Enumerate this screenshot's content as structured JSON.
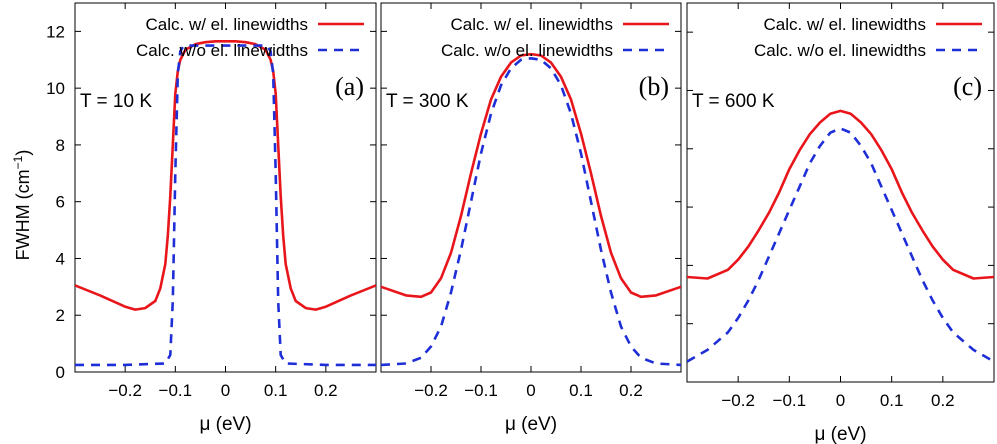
{
  "colors": {
    "with_linewidths": "#e8161b",
    "without_linewidths": "#1f2fd8",
    "axes": "#000000"
  },
  "ylabel": "FWHM (cm",
  "ylabel_sup": "−1",
  "ylabel_close": ")",
  "legend": {
    "with_linewidths": "Calc. w/ el. linewidths",
    "without_linewidths": "Calc. w/o el. linewidths"
  },
  "chart_data": [
    {
      "type": "line",
      "panel_label": "(a)",
      "temperature_label": "T = 10 K",
      "xlabel": "μ (eV)",
      "xlim": [
        -0.3,
        0.3
      ],
      "ylim": [
        0,
        13
      ],
      "xticks": [
        -0.2,
        -0.1,
        0,
        0.1,
        0.2
      ],
      "xtick_labels": [
        "−0.2",
        "−0.1",
        "0",
        "0.1",
        "0.2"
      ],
      "yticks": [
        0,
        2,
        4,
        6,
        8,
        10,
        12
      ],
      "ytick_labels": [
        "0",
        "2",
        "4",
        "6",
        "8",
        "10",
        "12"
      ],
      "legend_position": "top-right",
      "series": [
        {
          "name": "Calc. w/ el. linewidths",
          "style": "solid",
          "x": [
            -0.3,
            -0.25,
            -0.2,
            -0.18,
            -0.16,
            -0.14,
            -0.13,
            -0.12,
            -0.115,
            -0.11,
            -0.105,
            -0.1,
            -0.095,
            -0.09,
            -0.08,
            -0.06,
            -0.04,
            -0.02,
            0,
            0.02,
            0.04,
            0.06,
            0.08,
            0.09,
            0.095,
            0.1,
            0.105,
            0.11,
            0.115,
            0.12,
            0.13,
            0.14,
            0.16,
            0.18,
            0.2,
            0.25,
            0.3
          ],
          "y": [
            3.05,
            2.7,
            2.3,
            2.2,
            2.25,
            2.5,
            2.95,
            3.8,
            4.8,
            6.2,
            8.0,
            9.8,
            10.6,
            11.0,
            11.35,
            11.55,
            11.62,
            11.65,
            11.65,
            11.65,
            11.62,
            11.55,
            11.35,
            11.0,
            10.6,
            9.8,
            8.0,
            6.2,
            4.8,
            3.8,
            2.95,
            2.5,
            2.25,
            2.2,
            2.3,
            2.7,
            3.05
          ]
        },
        {
          "name": "Calc. w/o el. linewidths",
          "style": "dashed",
          "x": [
            -0.3,
            -0.2,
            -0.12,
            -0.11,
            -0.105,
            -0.1,
            -0.095,
            -0.09,
            -0.085,
            -0.08,
            -0.05,
            0,
            0.05,
            0.08,
            0.085,
            0.09,
            0.095,
            0.1,
            0.105,
            0.11,
            0.12,
            0.2,
            0.3
          ],
          "y": [
            0.25,
            0.25,
            0.3,
            0.6,
            2.5,
            7.0,
            10.5,
            11.3,
            11.45,
            11.5,
            11.5,
            11.5,
            11.5,
            11.5,
            11.45,
            11.3,
            10.5,
            7.0,
            2.5,
            0.6,
            0.3,
            0.25,
            0.25
          ]
        }
      ]
    },
    {
      "type": "line",
      "panel_label": "(b)",
      "temperature_label": "T = 300 K",
      "xlabel": "μ (eV)",
      "xlim": [
        -0.3,
        0.3
      ],
      "ylim": [
        0,
        13
      ],
      "xticks": [
        -0.2,
        -0.1,
        0,
        0.1,
        0.2
      ],
      "xtick_labels": [
        "−0.2",
        "−0.1",
        "0",
        "0.1",
        "0.2"
      ],
      "yticks": [
        0,
        2,
        4,
        6,
        8,
        10,
        12
      ],
      "ytick_labels": [],
      "legend_position": "top-right",
      "series": [
        {
          "name": "Calc. w/ el. linewidths",
          "style": "solid",
          "x": [
            -0.3,
            -0.25,
            -0.22,
            -0.2,
            -0.18,
            -0.16,
            -0.14,
            -0.12,
            -0.1,
            -0.08,
            -0.06,
            -0.04,
            -0.02,
            0,
            0.02,
            0.04,
            0.06,
            0.08,
            0.1,
            0.12,
            0.14,
            0.16,
            0.18,
            0.2,
            0.22,
            0.25,
            0.3
          ],
          "y": [
            3.0,
            2.7,
            2.65,
            2.8,
            3.3,
            4.2,
            5.5,
            7.0,
            8.4,
            9.6,
            10.4,
            10.9,
            11.15,
            11.2,
            11.15,
            10.9,
            10.4,
            9.6,
            8.4,
            7.0,
            5.5,
            4.2,
            3.3,
            2.8,
            2.65,
            2.7,
            3.0
          ]
        },
        {
          "name": "Calc. w/o el. linewidths",
          "style": "dashed",
          "x": [
            -0.3,
            -0.25,
            -0.22,
            -0.2,
            -0.18,
            -0.16,
            -0.14,
            -0.12,
            -0.1,
            -0.08,
            -0.06,
            -0.04,
            -0.02,
            0,
            0.02,
            0.04,
            0.06,
            0.08,
            0.1,
            0.12,
            0.14,
            0.16,
            0.18,
            0.2,
            0.22,
            0.25,
            0.3
          ],
          "y": [
            0.25,
            0.3,
            0.5,
            0.9,
            1.6,
            2.8,
            4.3,
            6.0,
            7.7,
            9.1,
            10.1,
            10.7,
            11.0,
            11.05,
            11.0,
            10.7,
            10.1,
            9.1,
            7.7,
            6.0,
            4.3,
            2.8,
            1.6,
            0.9,
            0.5,
            0.3,
            0.25
          ]
        }
      ]
    },
    {
      "type": "line",
      "panel_label": "(c)",
      "temperature_label": "T = 600 K",
      "xlabel": "μ (eV)",
      "xlim": [
        -0.3,
        0.3
      ],
      "ylim": [
        0,
        13
      ],
      "xticks": [
        -0.2,
        -0.1,
        0,
        0.1,
        0.2
      ],
      "xtick_labels": [
        "−0.2",
        "−0.1",
        "0",
        "0.1",
        "0.2"
      ],
      "yticks": [
        0,
        2,
        4,
        6,
        8,
        10,
        12
      ],
      "ytick_labels": [],
      "legend_position": "top-right",
      "series": [
        {
          "name": "Calc. w/ el. linewidths",
          "style": "solid",
          "x": [
            -0.3,
            -0.26,
            -0.22,
            -0.2,
            -0.18,
            -0.16,
            -0.14,
            -0.12,
            -0.1,
            -0.08,
            -0.06,
            -0.04,
            -0.02,
            0,
            0.02,
            0.04,
            0.06,
            0.08,
            0.1,
            0.12,
            0.14,
            0.16,
            0.18,
            0.2,
            0.22,
            0.26,
            0.3
          ],
          "y": [
            3.6,
            3.55,
            3.85,
            4.2,
            4.65,
            5.2,
            5.8,
            6.5,
            7.3,
            7.95,
            8.5,
            8.9,
            9.2,
            9.3,
            9.2,
            8.9,
            8.5,
            7.95,
            7.3,
            6.5,
            5.8,
            5.2,
            4.65,
            4.2,
            3.85,
            3.55,
            3.6
          ]
        },
        {
          "name": "Calc. w/o el. linewidths",
          "style": "dashed",
          "x": [
            -0.3,
            -0.26,
            -0.22,
            -0.2,
            -0.18,
            -0.16,
            -0.14,
            -0.12,
            -0.1,
            -0.08,
            -0.06,
            -0.04,
            -0.02,
            0,
            0.02,
            0.04,
            0.06,
            0.08,
            0.1,
            0.12,
            0.14,
            0.16,
            0.18,
            0.2,
            0.22,
            0.26,
            0.3
          ],
          "y": [
            0.7,
            1.1,
            1.7,
            2.2,
            2.8,
            3.5,
            4.3,
            5.1,
            5.9,
            6.7,
            7.5,
            8.1,
            8.55,
            8.7,
            8.55,
            8.1,
            7.5,
            6.7,
            5.9,
            5.1,
            4.3,
            3.5,
            2.8,
            2.2,
            1.7,
            1.1,
            0.7
          ]
        }
      ]
    }
  ]
}
